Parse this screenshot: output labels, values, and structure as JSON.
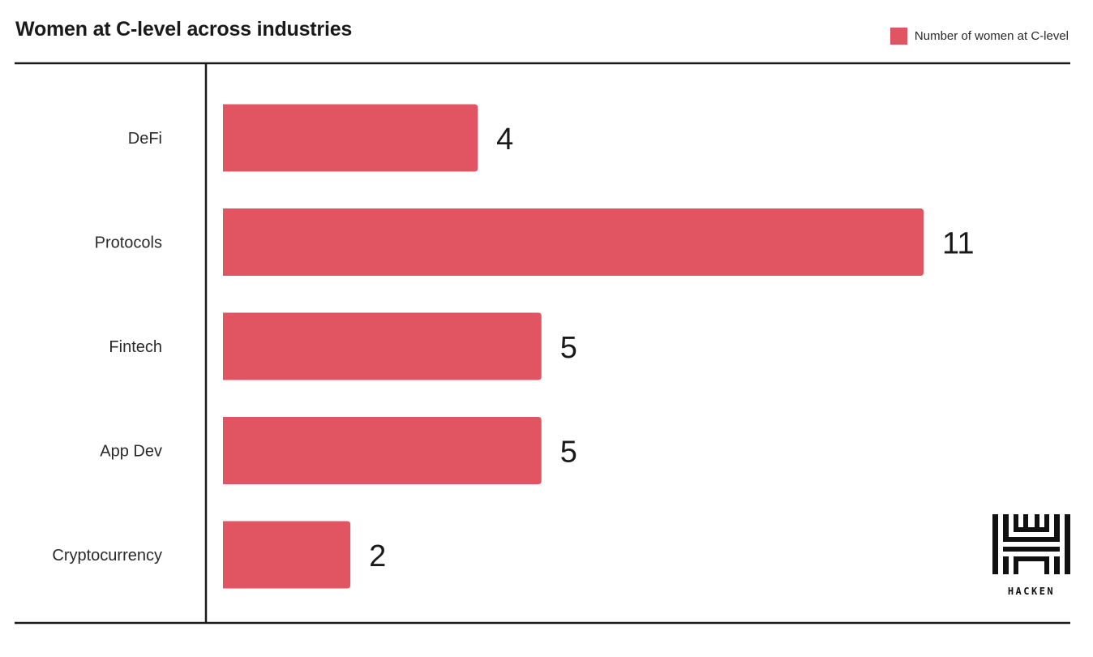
{
  "chart_data": {
    "type": "bar",
    "orientation": "horizontal",
    "title": "Women at C-level across industries",
    "categories": [
      "DeFi",
      "Protocols",
      "Fintech",
      "App Dev",
      "Cryptocurrency"
    ],
    "series": [
      {
        "name": "Number of women at C-level",
        "values": [
          4,
          11,
          5,
          5,
          2
        ]
      }
    ],
    "xlim": [
      0,
      11
    ],
    "grid": false,
    "legend_position": "top-right",
    "colors": {
      "bar": "#e05561",
      "axis": "#1a1a1a"
    }
  },
  "brand": {
    "name": "HACKEN"
  }
}
